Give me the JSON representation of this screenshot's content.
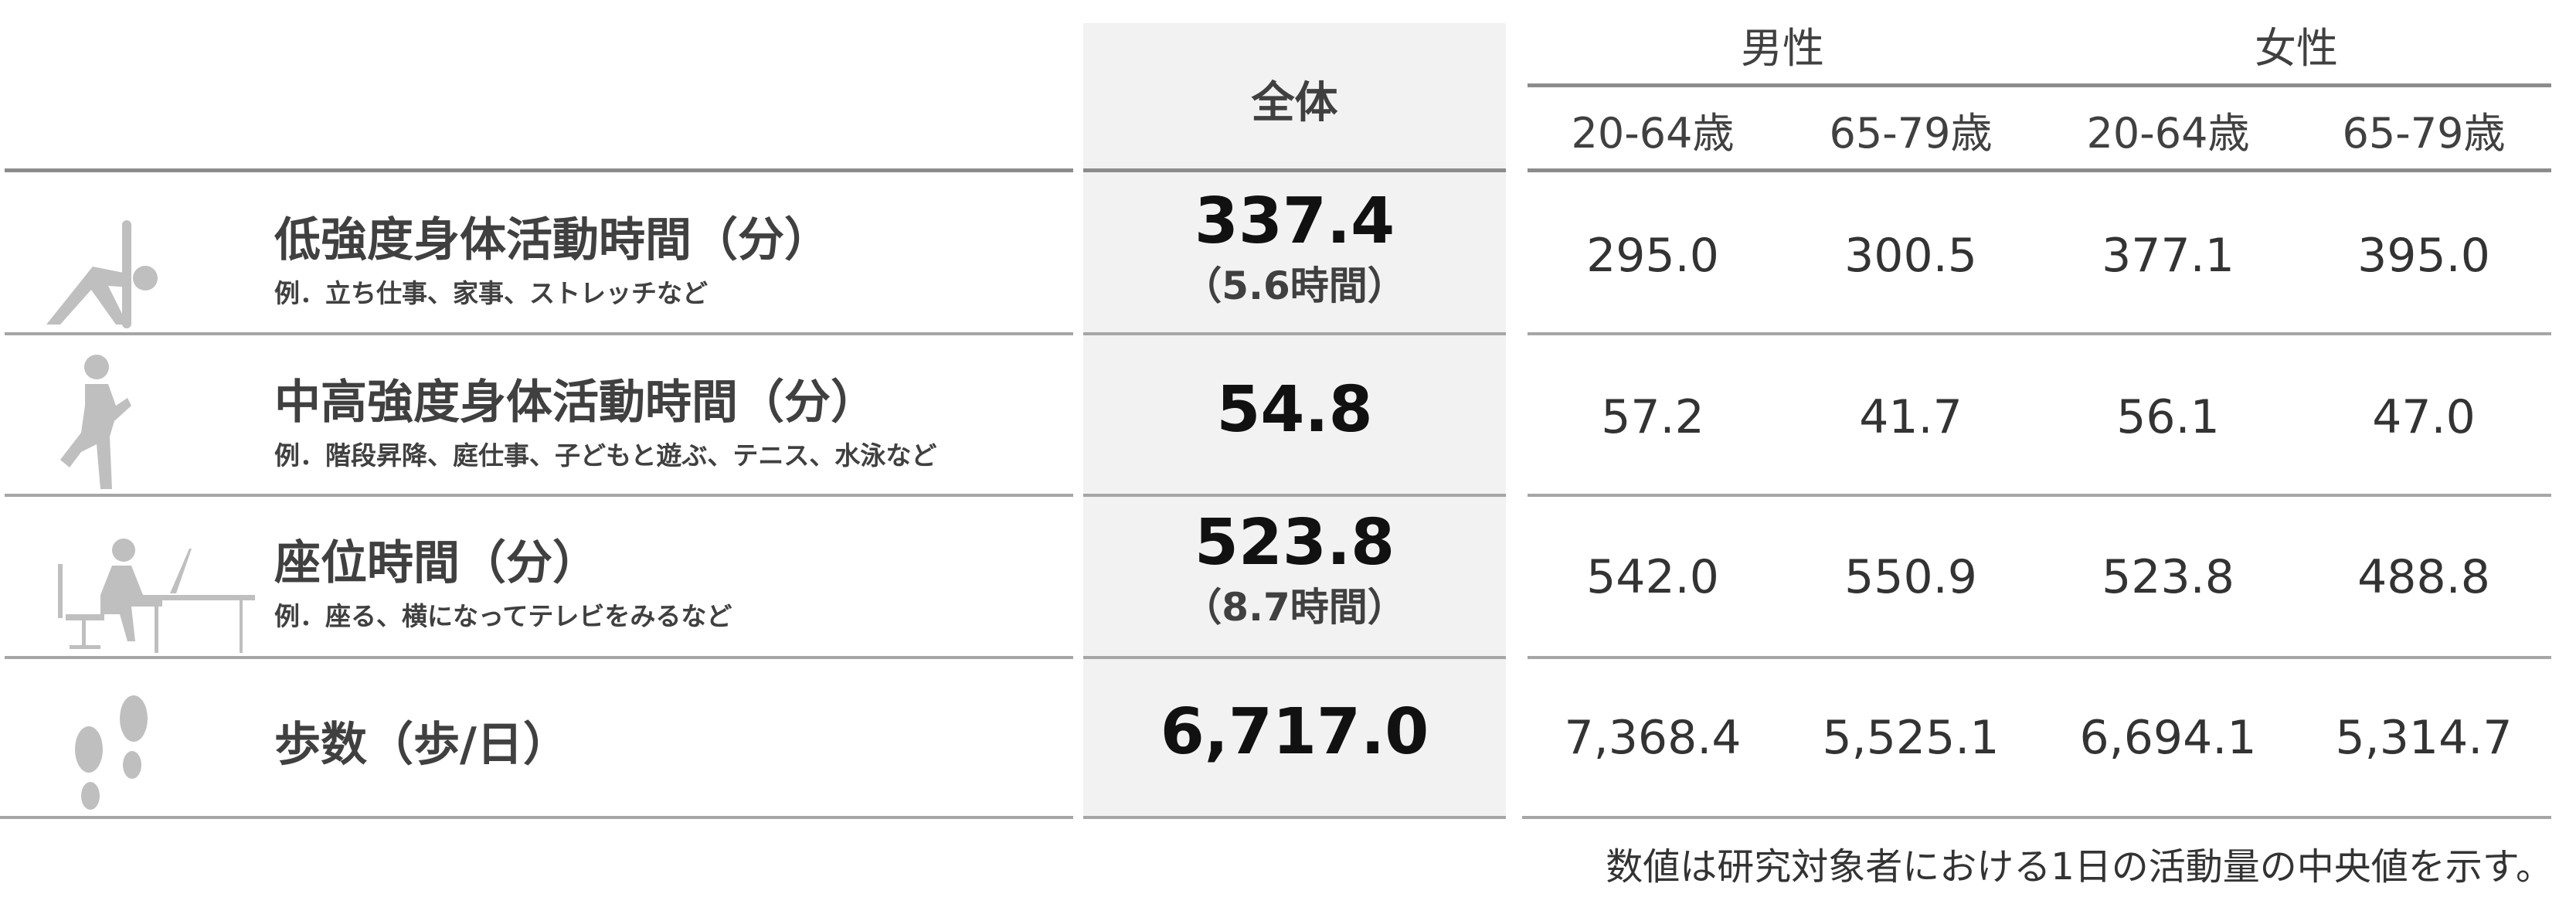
{
  "header": {
    "overall": "全体",
    "groups": [
      "男性",
      "女性"
    ],
    "ages": [
      "20-64歳",
      "65-79歳",
      "20-64歳",
      "65-79歳"
    ]
  },
  "rows": [
    {
      "icon": "stretching-person-icon",
      "title": "低強度身体活動時間（分）",
      "example": "例．立ち仕事、家事、ストレッチなど",
      "overall": "337.4",
      "overall_hours": "（5.6時間）",
      "values": [
        "295.0",
        "300.5",
        "377.1",
        "395.0"
      ]
    },
    {
      "icon": "running-person-icon",
      "title": "中高強度身体活動時間（分）",
      "example": "例．階段昇降、庭仕事、子どもと遊ぶ、テニス、水泳など",
      "overall": "54.8",
      "overall_hours": "",
      "values": [
        "57.2",
        "41.7",
        "56.1",
        "47.0"
      ]
    },
    {
      "icon": "sitting-person-icon",
      "title": "座位時間（分）",
      "example": "例．座る、横になってテレビをみるなど",
      "overall": "523.8",
      "overall_hours": "（8.7時間）",
      "values": [
        "542.0",
        "550.9",
        "523.8",
        "488.8"
      ]
    },
    {
      "icon": "footprints-icon",
      "title": "歩数（歩/日）",
      "example": "",
      "overall": "6,717.0",
      "overall_hours": "",
      "values": [
        "7,368.4",
        "5,525.1",
        "6,694.1",
        "5,314.7"
      ]
    }
  ],
  "footnote": "数値は研究対象者における1日の活動量の中央値を示す。",
  "colors": {
    "overall_bg": "#f2f2f2",
    "line": "#8c8c8c",
    "icon": "#bfbfbf"
  }
}
